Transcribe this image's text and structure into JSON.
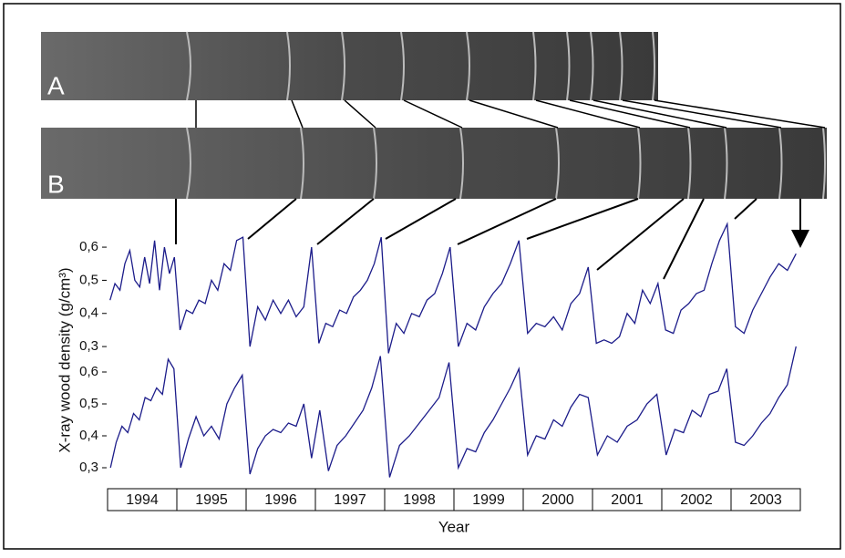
{
  "panels": {
    "a": "A",
    "b": "B"
  },
  "chart_data": [
    {
      "type": "line",
      "series": [
        {
          "color": "#1c1c8a",
          "values": [
            [
              0.44,
              0.49,
              0.47,
              0.55,
              0.59,
              0.5,
              0.48,
              0.57,
              0.49,
              0.62,
              0.47,
              0.6,
              0.52,
              0.57
            ],
            [
              0.35,
              0.41,
              0.4,
              0.44,
              0.43,
              0.5,
              0.47,
              0.55,
              0.53,
              0.62,
              0.63
            ],
            [
              0.3,
              0.42,
              0.38,
              0.44,
              0.4,
              0.44,
              0.39,
              0.42,
              0.6
            ],
            [
              0.31,
              0.37,
              0.36,
              0.41,
              0.4,
              0.45,
              0.47,
              0.5,
              0.55,
              0.63
            ],
            [
              0.28,
              0.37,
              0.34,
              0.4,
              0.39,
              0.44,
              0.46,
              0.52,
              0.6
            ],
            [
              0.3,
              0.37,
              0.35,
              0.42,
              0.46,
              0.49,
              0.55,
              0.62
            ],
            [
              0.34,
              0.37,
              0.36,
              0.39,
              0.35,
              0.43,
              0.46,
              0.54
            ],
            [
              0.31,
              0.32,
              0.31,
              0.33,
              0.4,
              0.37,
              0.47,
              0.43,
              0.49
            ],
            [
              0.35,
              0.34,
              0.41,
              0.43,
              0.46,
              0.47,
              0.55,
              0.62,
              0.67
            ],
            [
              0.36,
              0.34,
              0.41,
              0.46,
              0.51,
              0.55,
              0.53,
              0.58
            ]
          ]
        }
      ],
      "ylim": [
        0.27,
        0.68
      ],
      "yticks": [
        {
          "value": 0.3,
          "label": "0,3"
        },
        {
          "value": 0.4,
          "label": "0,4"
        },
        {
          "value": 0.5,
          "label": "0,5"
        },
        {
          "value": 0.6,
          "label": "0,6"
        }
      ],
      "ylabel": "X-ray wood density (g/cm³)"
    },
    {
      "type": "line",
      "categories": [
        "1994",
        "1995",
        "1996",
        "1997",
        "1998",
        "1999",
        "2000",
        "2001",
        "2002",
        "2003"
      ],
      "series": [
        {
          "color": "#1c1c8a",
          "values": [
            [
              0.3,
              0.38,
              0.43,
              0.41,
              0.47,
              0.45,
              0.52,
              0.51,
              0.55,
              0.53,
              0.64,
              0.61
            ],
            [
              0.3,
              0.39,
              0.46,
              0.4,
              0.43,
              0.39,
              0.5,
              0.55,
              0.59
            ],
            [
              0.28,
              0.36,
              0.4,
              0.42,
              0.41,
              0.44,
              0.43,
              0.5,
              0.33
            ],
            [
              0.48,
              0.29,
              0.37,
              0.4,
              0.44,
              0.48,
              0.55,
              0.65
            ],
            [
              0.27,
              0.37,
              0.4,
              0.44,
              0.48,
              0.52,
              0.63
            ],
            [
              0.3,
              0.36,
              0.35,
              0.41,
              0.45,
              0.5,
              0.55,
              0.61
            ],
            [
              0.34,
              0.4,
              0.39,
              0.45,
              0.43,
              0.49,
              0.53,
              0.52
            ],
            [
              0.34,
              0.4,
              0.38,
              0.43,
              0.45,
              0.5,
              0.53
            ],
            [
              0.34,
              0.42,
              0.41,
              0.48,
              0.46,
              0.53,
              0.54,
              0.61
            ],
            [
              0.38,
              0.37,
              0.4,
              0.44,
              0.47,
              0.52,
              0.56,
              0.68
            ]
          ]
        }
      ],
      "ylim": [
        0.26,
        0.66
      ],
      "yticks": [
        {
          "value": 0.3,
          "label": "0,3"
        },
        {
          "value": 0.4,
          "label": "0,4"
        },
        {
          "value": 0.5,
          "label": "0,5"
        },
        {
          "value": 0.6,
          "label": "0,6"
        }
      ],
      "xlabel": "Year"
    }
  ]
}
